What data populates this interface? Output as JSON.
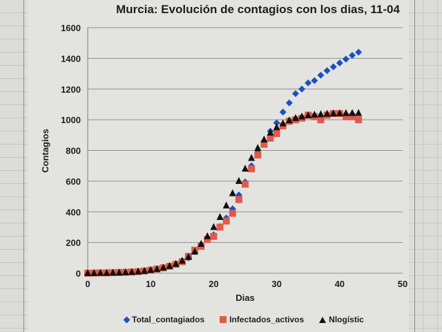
{
  "chart_data": {
    "type": "scatter",
    "title": "Murcia: Evolución de contagios con los dias, 11-04",
    "xlabel": "Dias",
    "ylabel": "Contagios",
    "xlim": [
      0,
      50
    ],
    "ylim": [
      0,
      1600
    ],
    "x_ticks": [
      0,
      10,
      20,
      30,
      40,
      50
    ],
    "y_ticks": [
      0,
      200,
      400,
      600,
      800,
      1000,
      1200,
      1400,
      1600
    ],
    "grid": "horizontal",
    "legend_position": "bottom",
    "series": [
      {
        "name": "Total_contagiados",
        "marker": "diamond",
        "color": "#1f4fbf",
        "x": [
          0,
          1,
          2,
          3,
          4,
          5,
          6,
          7,
          8,
          9,
          10,
          11,
          12,
          13,
          14,
          15,
          16,
          17,
          18,
          19,
          20,
          21,
          22,
          23,
          24,
          25,
          26,
          27,
          28,
          29,
          30,
          31,
          32,
          33,
          34,
          35,
          36,
          37,
          38,
          39,
          40,
          41,
          42,
          43
        ],
        "values": [
          0,
          1,
          2,
          2,
          4,
          5,
          6,
          8,
          10,
          14,
          20,
          27,
          35,
          45,
          58,
          75,
          100,
          140,
          175,
          220,
          250,
          305,
          360,
          420,
          510,
          595,
          700,
          790,
          860,
          925,
          980,
          1050,
          1110,
          1170,
          1200,
          1240,
          1255,
          1290,
          1320,
          1345,
          1370,
          1395,
          1420,
          1440
        ]
      },
      {
        "name": "Infectados_activos",
        "marker": "square",
        "color": "#e05a4a",
        "x": [
          0,
          1,
          2,
          3,
          4,
          5,
          6,
          7,
          8,
          9,
          10,
          11,
          12,
          13,
          14,
          15,
          16,
          17,
          18,
          19,
          20,
          21,
          22,
          23,
          24,
          25,
          26,
          27,
          28,
          29,
          30,
          31,
          32,
          33,
          34,
          35,
          36,
          37,
          38,
          39,
          40,
          41,
          42,
          43
        ],
        "values": [
          0,
          1,
          2,
          2,
          4,
          5,
          6,
          8,
          10,
          14,
          20,
          27,
          35,
          45,
          58,
          75,
          110,
          150,
          175,
          220,
          240,
          300,
          340,
          390,
          480,
          580,
          680,
          770,
          840,
          880,
          910,
          960,
          990,
          1000,
          1010,
          1030,
          1020,
          1000,
          1030,
          1040,
          1040,
          1020,
          1020,
          1000
        ]
      },
      {
        "name": "Nlogístic",
        "marker": "triangle",
        "color": "#111111",
        "x": [
          0,
          1,
          2,
          3,
          4,
          5,
          6,
          7,
          8,
          9,
          10,
          11,
          12,
          13,
          14,
          15,
          16,
          17,
          18,
          19,
          20,
          21,
          22,
          23,
          24,
          25,
          26,
          27,
          28,
          29,
          30,
          31,
          32,
          33,
          34,
          35,
          36,
          37,
          38,
          39,
          40,
          41,
          42,
          43
        ],
        "values": [
          0,
          0,
          1,
          1,
          2,
          3,
          5,
          7,
          10,
          14,
          20,
          26,
          35,
          46,
          60,
          80,
          105,
          140,
          190,
          240,
          300,
          365,
          440,
          520,
          600,
          680,
          750,
          815,
          870,
          915,
          950,
          975,
          995,
          1010,
          1020,
          1027,
          1032,
          1035,
          1038,
          1040,
          1041,
          1042,
          1043,
          1043
        ]
      }
    ]
  },
  "legend": {
    "items": [
      "Total_contagiados",
      "Infectados_activos",
      "Nlogístic"
    ]
  }
}
